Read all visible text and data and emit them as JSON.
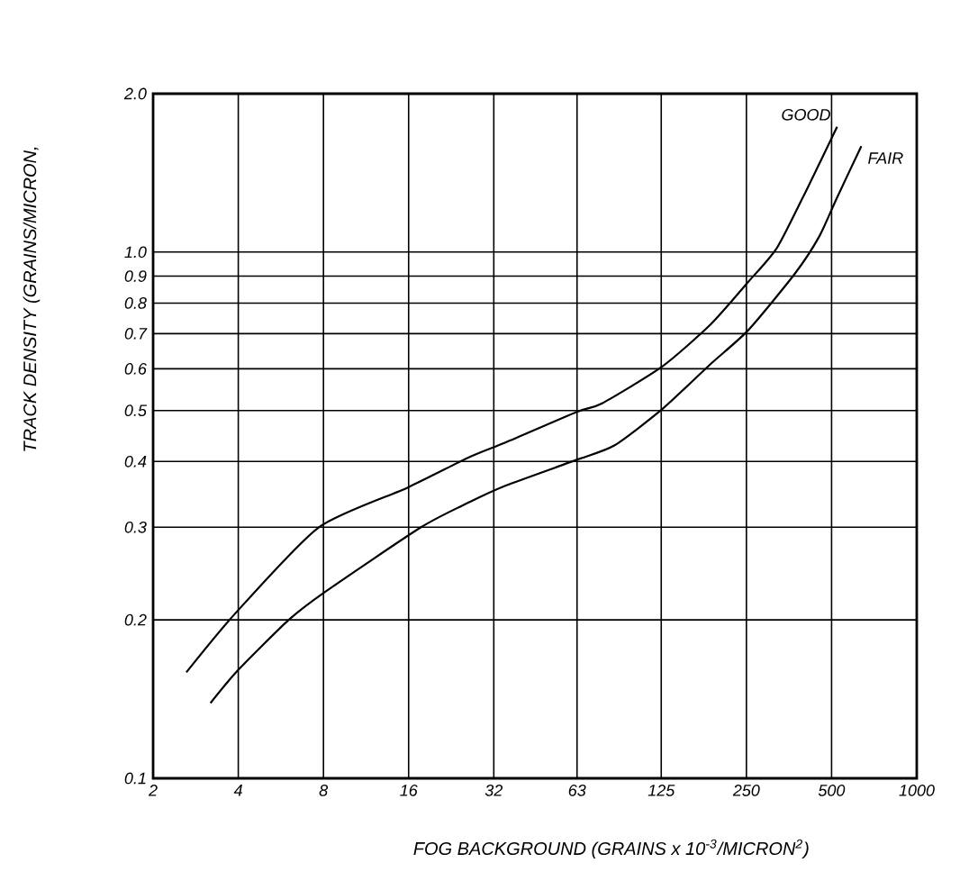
{
  "chart_data": {
    "type": "line",
    "xlabel": "FOG BACKGROUND (GRAINS x 10$^{-3}$/MICRON$^{2}$)",
    "ylabel": "TRACK DENSITY (GRAINS/MICRON,",
    "log": "xy",
    "grid": true,
    "legend": false,
    "marker": "none",
    "line_style": "solid",
    "xlim": [
      2,
      1000
    ],
    "ylim": [
      0.1,
      2.0
    ],
    "xticks": [
      2,
      4,
      8,
      16,
      32,
      63,
      125,
      250,
      500,
      1000
    ],
    "yticks": [
      0.1,
      0.2,
      0.3,
      0.4,
      0.5,
      0.6,
      0.7,
      0.8,
      0.9,
      {
        "value": 1.0,
        "label": "1.0"
      },
      {
        "value": 2.0,
        "label": "2.0"
      }
    ],
    "series": [
      {
        "name": "GOOD",
        "color": "#000000",
        "x": [
          2.62,
          3.88,
          7.71,
          15.9,
          26.3,
          35.3,
          62.9,
          77.3,
          126,
          187,
          254,
          321,
          410,
          523
        ],
        "values": [
          0.159,
          0.205,
          0.3,
          0.357,
          0.408,
          0.435,
          0.497,
          0.516,
          0.606,
          0.729,
          0.878,
          1.02,
          1.32,
          1.73
        ]
      },
      {
        "name": "FAIR",
        "color": "#000000",
        "x": [
          3.19,
          3.97,
          6.03,
          8.1,
          17.7,
          26.3,
          35.3,
          62.9,
          85.3,
          126,
          187,
          254,
          371,
          452,
          523,
          637
        ],
        "values": [
          0.139,
          0.16,
          0.2,
          0.226,
          0.3,
          0.335,
          0.36,
          0.403,
          0.429,
          0.503,
          0.613,
          0.711,
          0.91,
          1.07,
          1.27,
          1.59
        ]
      }
    ]
  }
}
